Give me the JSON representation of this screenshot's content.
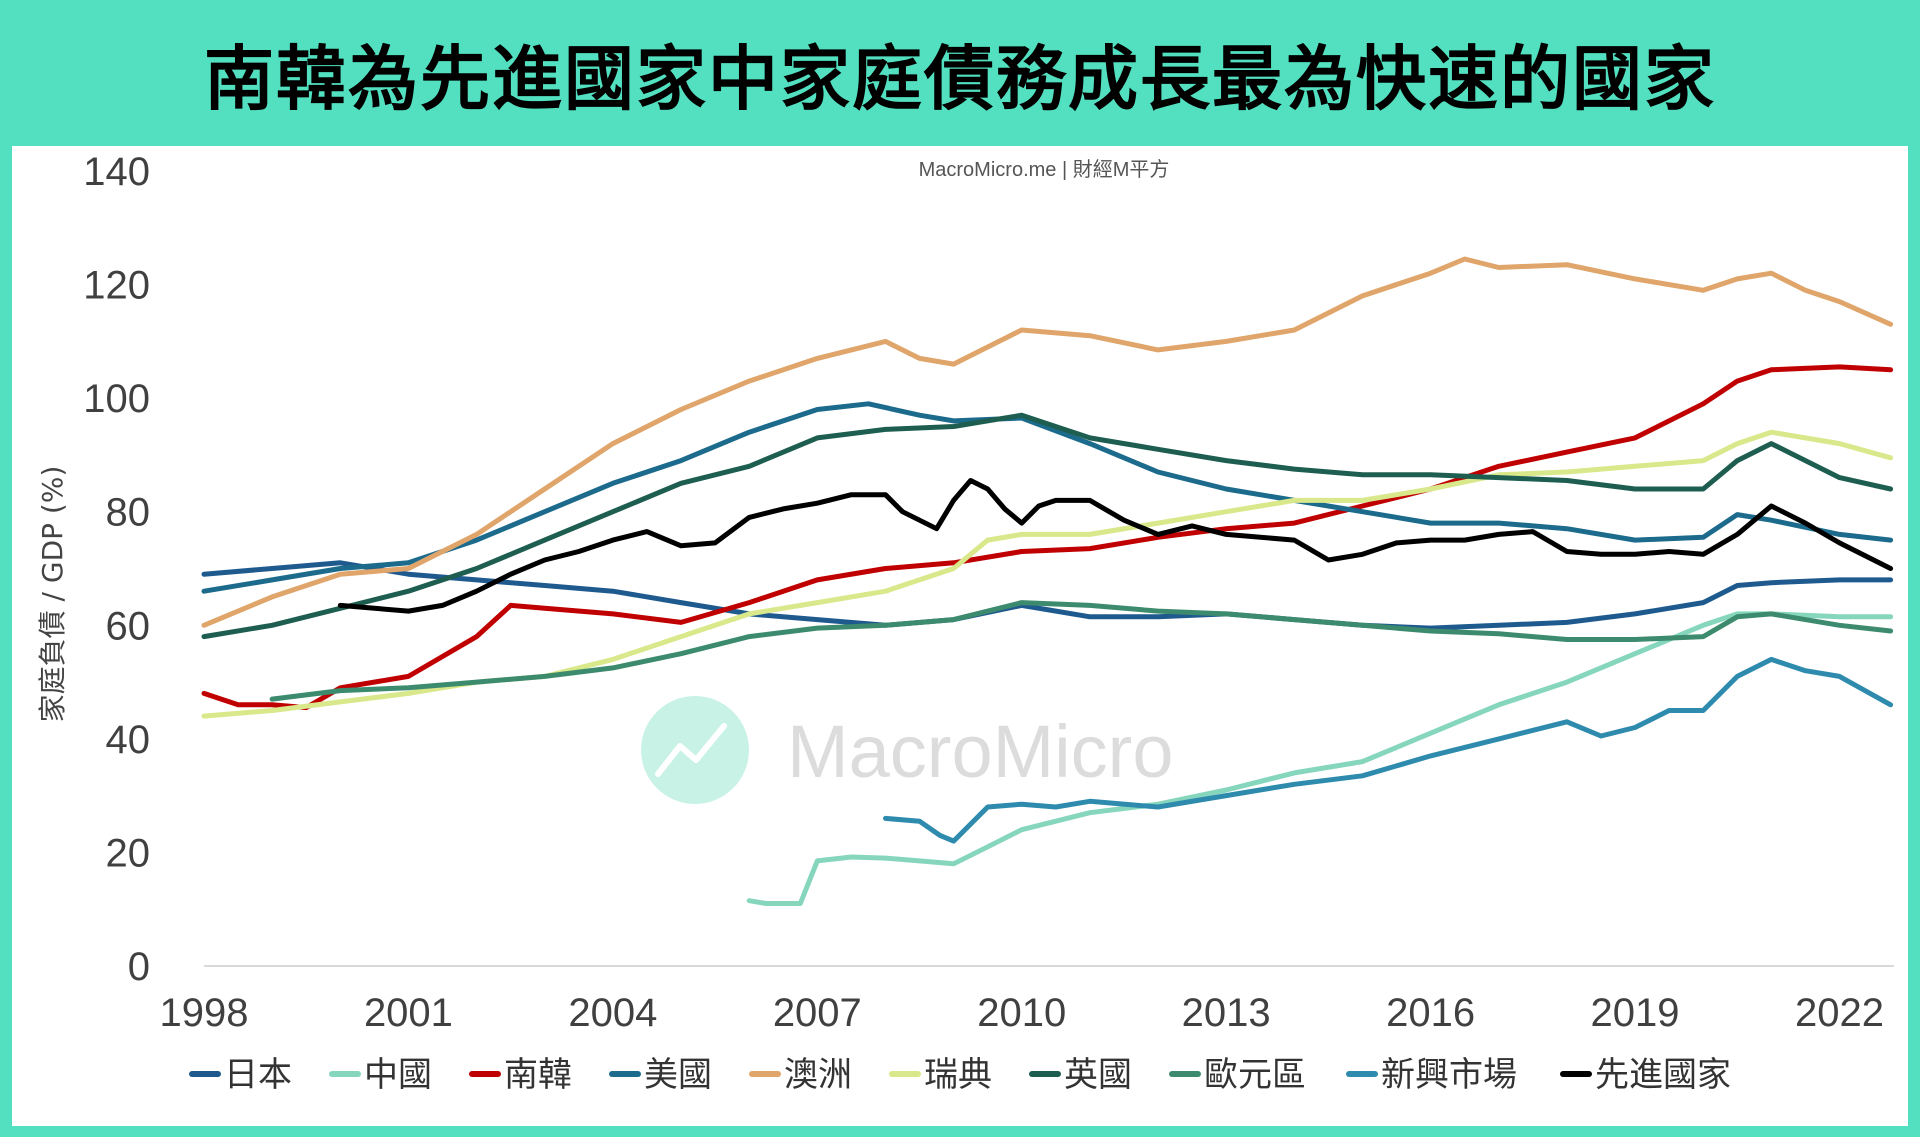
{
  "title": "南韓為先進國家中家庭債務成長最為快速的國家",
  "chart_data": {
    "type": "line",
    "source_label": "MacroMicro.me | 財經M平方",
    "watermark": "MacroMicro",
    "ylabel": "家庭負債 / GDP (%)",
    "xlabel": "",
    "ylim": [
      0,
      140
    ],
    "xlim": [
      1998,
      2022.8
    ],
    "yticks": [
      0,
      20,
      40,
      60,
      80,
      100,
      120,
      140
    ],
    "xticks": [
      "1998",
      "2001",
      "2004",
      "2007",
      "2010",
      "2013",
      "2016",
      "2019",
      "2022"
    ],
    "legend_position": "bottom",
    "grid": false,
    "series": [
      {
        "name": "日本",
        "color": "#1f5a8e",
        "x": [
          1998,
          1999,
          2000,
          2001,
          2002,
          2003,
          2004,
          2005,
          2006,
          2007,
          2008,
          2009,
          2010,
          2011,
          2012,
          2013,
          2014,
          2015,
          2016,
          2017,
          2018,
          2019,
          2020,
          2020.5,
          2021,
          2022,
          2022.75
        ],
        "y": [
          69,
          70,
          71,
          69,
          68,
          67,
          66,
          64,
          62,
          61,
          60,
          61,
          63.5,
          61.5,
          61.5,
          62,
          61,
          60,
          59.5,
          60,
          60.5,
          62,
          64,
          67,
          67.5,
          68,
          68
        ]
      },
      {
        "name": "中國",
        "color": "#86d6bd",
        "x": [
          2006,
          2006.25,
          2006.75,
          2007,
          2007.5,
          2008,
          2008.5,
          2009,
          2009.5,
          2010,
          2011,
          2012,
          2013,
          2014,
          2015,
          2016,
          2017,
          2018,
          2019,
          2020,
          2020.5,
          2021,
          2022,
          2022.75
        ],
        "y": [
          11.5,
          11,
          11,
          18.5,
          19.2,
          19,
          18.5,
          18,
          21,
          24,
          27,
          28.5,
          31,
          34,
          36,
          41,
          46,
          50,
          55,
          60,
          62,
          62,
          61.5,
          61.5
        ]
      },
      {
        "name": "南韓",
        "color": "#c00000",
        "x": [
          1998,
          1998.5,
          1999,
          1999.5,
          2000,
          2001,
          2002,
          2002.5,
          2003,
          2004,
          2005,
          2006,
          2007,
          2008,
          2009,
          2010,
          2011,
          2012,
          2013,
          2014,
          2015,
          2016,
          2017,
          2018,
          2019,
          2020,
          2020.5,
          2021,
          2022,
          2022.75
        ],
        "y": [
          48,
          46,
          46,
          45.5,
          49,
          51,
          58,
          63.5,
          63,
          62,
          60.5,
          64,
          68,
          70,
          71,
          73,
          73.5,
          75.5,
          77,
          78,
          81,
          84,
          88,
          90.5,
          93,
          99,
          103,
          105,
          105.5,
          105
        ]
      },
      {
        "name": "美國",
        "color": "#1c6b8c",
        "x": [
          1998,
          1999,
          2000,
          2001,
          2002,
          2003,
          2004,
          2005,
          2006,
          2007,
          2007.75,
          2008.5,
          2009,
          2010,
          2011,
          2012,
          2013,
          2014,
          2015,
          2016,
          2017,
          2018,
          2019,
          2020,
          2020.5,
          2021,
          2022,
          2022.75
        ],
        "y": [
          66,
          68,
          70,
          71,
          75,
          80,
          85,
          89,
          94,
          98,
          99,
          97,
          96,
          96.5,
          92,
          87,
          84,
          82,
          80,
          78,
          78,
          77,
          75,
          75.5,
          79.5,
          78.5,
          76,
          75
        ]
      },
      {
        "name": "澳洲",
        "color": "#e0a56a",
        "x": [
          1998,
          1999,
          2000,
          2001,
          2002,
          2003,
          2004,
          2005,
          2006,
          2007,
          2008,
          2008.5,
          2009,
          2009.5,
          2010,
          2011,
          2012,
          2013,
          2014,
          2015,
          2016,
          2016.5,
          2017,
          2018,
          2019,
          2020,
          2020.5,
          2021,
          2021.5,
          2022,
          2022.75
        ],
        "y": [
          60,
          65,
          69,
          70,
          76,
          84,
          92,
          98,
          103,
          107,
          110,
          107,
          106,
          109,
          112,
          111,
          108.5,
          110,
          112,
          118,
          122,
          124.5,
          123,
          123.5,
          121,
          119,
          121,
          122,
          119,
          117,
          113
        ]
      },
      {
        "name": "瑞典",
        "color": "#d9e88a",
        "x": [
          1998,
          1999,
          2000,
          2001,
          2002,
          2003,
          2004,
          2005,
          2006,
          2007,
          2008,
          2009,
          2009.5,
          2010,
          2011,
          2012,
          2013,
          2014,
          2015,
          2016,
          2017,
          2018,
          2019,
          2020,
          2020.5,
          2021,
          2022,
          2022.75
        ],
        "y": [
          44,
          45,
          46.5,
          48,
          50,
          51,
          54,
          58,
          62,
          64,
          66,
          70,
          75,
          76,
          76,
          78,
          80,
          82,
          82,
          84,
          86.5,
          87,
          88,
          89,
          92,
          94,
          92,
          89.5
        ]
      },
      {
        "name": "英國",
        "color": "#1e5e50",
        "x": [
          1998,
          1999,
          2000,
          2001,
          2002,
          2003,
          2004,
          2005,
          2006,
          2007,
          2008,
          2009,
          2010,
          2011,
          2012,
          2013,
          2014,
          2015,
          2016,
          2017,
          2018,
          2019,
          2020,
          2020.5,
          2021,
          2022,
          2022.75
        ],
        "y": [
          58,
          60,
          63,
          66,
          70,
          75,
          80,
          85,
          88,
          93,
          94.5,
          95,
          97,
          93,
          91,
          89,
          87.5,
          86.5,
          86.5,
          86,
          85.5,
          84,
          84,
          89,
          92,
          86,
          84
        ]
      },
      {
        "name": "歐元區",
        "color": "#3d8b6e",
        "x": [
          1999,
          2000,
          2001,
          2002,
          2003,
          2004,
          2005,
          2006,
          2007,
          2008,
          2009,
          2010,
          2011,
          2012,
          2013,
          2014,
          2015,
          2016,
          2017,
          2018,
          2019,
          2020,
          2020.5,
          2021,
          2022,
          2022.75
        ],
        "y": [
          47,
          48.5,
          49,
          50,
          51,
          52.5,
          55,
          58,
          59.5,
          60,
          61,
          64,
          63.5,
          62.5,
          62,
          61,
          60,
          59,
          58.5,
          57.5,
          57.5,
          58,
          61.5,
          62,
          60,
          59
        ]
      },
      {
        "name": "新興市場",
        "color": "#2e8bad",
        "x": [
          2008,
          2008.5,
          2008.8,
          2009,
          2009.5,
          2010,
          2010.5,
          2011,
          2012,
          2013,
          2014,
          2015,
          2016,
          2016.5,
          2017,
          2018,
          2018.5,
          2019,
          2019.5,
          2020,
          2020.5,
          2021,
          2021.5,
          2022,
          2022.75
        ],
        "y": [
          26,
          25.5,
          23,
          22,
          28,
          28.5,
          28,
          29,
          28,
          30,
          32,
          33.5,
          37,
          38.5,
          40,
          43,
          40.5,
          42,
          45,
          45,
          51,
          54,
          52,
          51,
          46
        ]
      },
      {
        "name": "先進國家",
        "color": "#000000",
        "x": [
          2000,
          2000.5,
          2001,
          2001.5,
          2002,
          2002.5,
          2003,
          2003.5,
          2004,
          2004.5,
          2005,
          2005.5,
          2006,
          2006.5,
          2007,
          2007.5,
          2008,
          2008.25,
          2008.75,
          2009,
          2009.25,
          2009.5,
          2009.75,
          2010,
          2010.25,
          2010.5,
          2011,
          2011.5,
          2012,
          2012.5,
          2013,
          2014,
          2014.5,
          2015,
          2015.5,
          2016,
          2016.5,
          2017,
          2017.5,
          2018,
          2018.5,
          2019,
          2019.5,
          2020,
          2020.5,
          2021,
          2021.5,
          2022,
          2022.75
        ],
        "y": [
          63.5,
          63,
          62.5,
          63.5,
          66,
          69,
          71.5,
          73,
          75,
          76.5,
          74,
          74.5,
          79,
          80.5,
          81.5,
          83,
          83,
          80,
          77,
          82,
          85.5,
          84,
          80.5,
          78,
          81,
          82,
          82,
          78.5,
          76,
          77.5,
          76,
          75,
          71.5,
          72.5,
          74.5,
          75,
          75,
          76,
          76.5,
          73,
          72.5,
          72.5,
          73,
          72.5,
          76,
          81,
          78,
          74.5,
          70
        ]
      }
    ]
  }
}
